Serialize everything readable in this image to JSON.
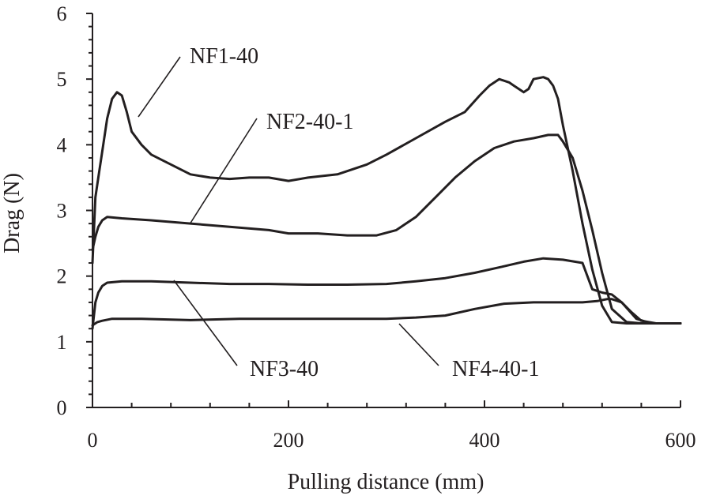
{
  "chart_data": {
    "type": "line",
    "xlabel": "Pulling distance (mm)",
    "ylabel": "Drag (N)",
    "xlim": [
      0,
      600
    ],
    "ylim": [
      0,
      6
    ],
    "x_ticks": [
      0,
      200,
      400,
      600
    ],
    "y_ticks": [
      0,
      1,
      2,
      3,
      4,
      5,
      6
    ],
    "grid": false,
    "legend": "none (inline labels with leader lines)",
    "series": [
      {
        "name": "NF1-40",
        "x": [
          0,
          3,
          6,
          10,
          15,
          20,
          25,
          30,
          35,
          40,
          50,
          60,
          80,
          100,
          120,
          140,
          160,
          180,
          200,
          220,
          250,
          280,
          300,
          330,
          360,
          380,
          395,
          405,
          415,
          425,
          430,
          440,
          445,
          450,
          460,
          465,
          470,
          475,
          480,
          490,
          500,
          510,
          520,
          530,
          545,
          560,
          580,
          600
        ],
        "y": [
          2.2,
          3.2,
          3.5,
          3.9,
          4.4,
          4.7,
          4.8,
          4.75,
          4.5,
          4.2,
          4.0,
          3.85,
          3.7,
          3.55,
          3.5,
          3.48,
          3.5,
          3.5,
          3.45,
          3.5,
          3.55,
          3.7,
          3.85,
          4.1,
          4.35,
          4.5,
          4.75,
          4.9,
          5.0,
          4.95,
          4.9,
          4.8,
          4.85,
          5.0,
          5.03,
          5.0,
          4.9,
          4.7,
          4.3,
          3.6,
          2.8,
          2.1,
          1.55,
          1.3,
          1.28,
          1.28,
          1.28,
          1.28
        ]
      },
      {
        "name": "NF2-40-1",
        "x": [
          0,
          3,
          6,
          10,
          15,
          30,
          60,
          100,
          140,
          180,
          200,
          230,
          260,
          290,
          310,
          330,
          350,
          370,
          390,
          410,
          430,
          450,
          465,
          475,
          480,
          490,
          500,
          510,
          520,
          530,
          545,
          560,
          580,
          600
        ],
        "y": [
          2.4,
          2.6,
          2.75,
          2.85,
          2.9,
          2.88,
          2.85,
          2.8,
          2.75,
          2.7,
          2.65,
          2.65,
          2.62,
          2.62,
          2.7,
          2.9,
          3.2,
          3.5,
          3.75,
          3.95,
          4.05,
          4.1,
          4.15,
          4.15,
          4.05,
          3.8,
          3.3,
          2.7,
          2.05,
          1.5,
          1.3,
          1.28,
          1.28,
          1.28
        ]
      },
      {
        "name": "NF3-40",
        "x": [
          0,
          3,
          6,
          10,
          15,
          30,
          60,
          100,
          140,
          180,
          220,
          260,
          300,
          330,
          360,
          390,
          420,
          440,
          460,
          480,
          500,
          505,
          510,
          520,
          530,
          540,
          555,
          570,
          585,
          600
        ],
        "y": [
          1.2,
          1.6,
          1.75,
          1.85,
          1.9,
          1.92,
          1.92,
          1.9,
          1.88,
          1.88,
          1.87,
          1.87,
          1.88,
          1.92,
          1.97,
          2.05,
          2.15,
          2.22,
          2.27,
          2.25,
          2.2,
          2.0,
          1.8,
          1.75,
          1.72,
          1.6,
          1.35,
          1.28,
          1.28,
          1.28
        ]
      },
      {
        "name": "NF4-40-1",
        "x": [
          0,
          5,
          10,
          20,
          50,
          100,
          150,
          200,
          250,
          300,
          330,
          360,
          390,
          420,
          450,
          480,
          500,
          515,
          525,
          530,
          540,
          550,
          560,
          575,
          590,
          600
        ],
        "y": [
          1.25,
          1.3,
          1.32,
          1.35,
          1.35,
          1.33,
          1.35,
          1.35,
          1.35,
          1.35,
          1.37,
          1.4,
          1.5,
          1.58,
          1.6,
          1.6,
          1.6,
          1.62,
          1.65,
          1.65,
          1.6,
          1.45,
          1.32,
          1.28,
          1.28,
          1.28
        ]
      }
    ],
    "labels": [
      {
        "text": "NF1-40",
        "series": "NF1-40"
      },
      {
        "text": "NF2-40-1",
        "series": "NF2-40-1"
      },
      {
        "text": "NF3-40",
        "series": "NF3-40"
      },
      {
        "text": "NF4-40-1",
        "series": "NF4-40-1"
      }
    ]
  }
}
